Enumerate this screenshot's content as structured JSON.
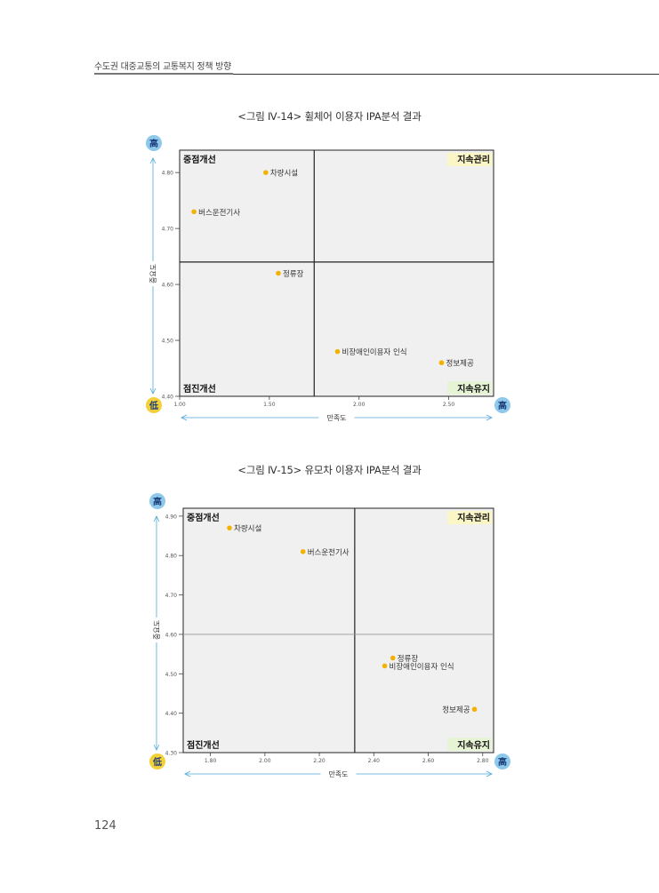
{
  "header": {
    "running_title": "수도권 대중교통의 교통복지 정책 방향"
  },
  "page_number": "124",
  "figures": [
    {
      "caption": "<그림 Ⅳ-14> 휠체어 이용자 IPA분석 결과",
      "badges": {
        "high": "高",
        "low": "低"
      },
      "quadrants": {
        "top_left": "중점개선",
        "top_right": "지속관리",
        "bottom_left": "점진개선",
        "bottom_right": "지속유지"
      },
      "colors": {
        "plot_bg": "#f0f0f0",
        "point": "#f2b200",
        "arrow": "#4fa8d8",
        "badge_high": "#8ec8ea",
        "badge_low": "#f4d13a",
        "keep_label_bg": "#e6f3d4",
        "manage_label_bg": "#fbf6c6"
      },
      "chart_data": {
        "type": "scatter",
        "xlabel": "만족도",
        "ylabel": "중요도",
        "xlim": [
          1.0,
          2.75
        ],
        "ylim": [
          4.4,
          4.84
        ],
        "x_ticks": [
          "1.00",
          "1.50",
          "2.00",
          "2.50"
        ],
        "y_ticks": [
          "4.40",
          "4.50",
          "4.60",
          "4.70",
          "4.80"
        ],
        "divider_x": 1.75,
        "divider_y": 4.64,
        "points": [
          {
            "label": "차량시설",
            "x": 1.48,
            "y": 4.8
          },
          {
            "label": "버스운전기사",
            "x": 1.08,
            "y": 4.73
          },
          {
            "label": "정류장",
            "x": 1.55,
            "y": 4.62
          },
          {
            "label": "비장애인이용자 인식",
            "x": 1.88,
            "y": 4.48
          },
          {
            "label": "정보제공",
            "x": 2.46,
            "y": 4.46
          }
        ]
      }
    },
    {
      "caption": "<그림 Ⅳ-15> 유모차 이용자 IPA분석 결과",
      "badges": {
        "high": "高",
        "low": "低"
      },
      "quadrants": {
        "top_left": "중점개선",
        "top_right": "지속관리",
        "bottom_left": "점진개선",
        "bottom_right": "지속유지"
      },
      "colors": {
        "plot_bg": "#f0f0f0",
        "point": "#f2b200",
        "arrow": "#4fa8d8",
        "badge_high": "#8ec8ea",
        "badge_low": "#f4d13a",
        "keep_label_bg": "#e6f3d4",
        "manage_label_bg": "#fbf6c6"
      },
      "chart_data": {
        "type": "scatter",
        "xlabel": "만족도",
        "ylabel": "중요도",
        "xlim": [
          1.7,
          2.84
        ],
        "ylim": [
          4.3,
          4.92
        ],
        "x_ticks": [
          "1.80",
          "2.00",
          "2.20",
          "2.40",
          "2.60",
          "2.80"
        ],
        "y_ticks": [
          "4.30",
          "4.40",
          "4.50",
          "4.60",
          "4.70",
          "4.80",
          "4.90"
        ],
        "divider_x": 2.33,
        "divider_y": 4.6,
        "points": [
          {
            "label": "차량시설",
            "x": 1.87,
            "y": 4.87
          },
          {
            "label": "버스운전기사",
            "x": 2.14,
            "y": 4.81
          },
          {
            "label": "정류장",
            "x": 2.47,
            "y": 4.54
          },
          {
            "label": "비장애인이용자 인식",
            "x": 2.44,
            "y": 4.52
          },
          {
            "label": "정보제공",
            "x": 2.77,
            "y": 4.41
          }
        ]
      }
    }
  ]
}
